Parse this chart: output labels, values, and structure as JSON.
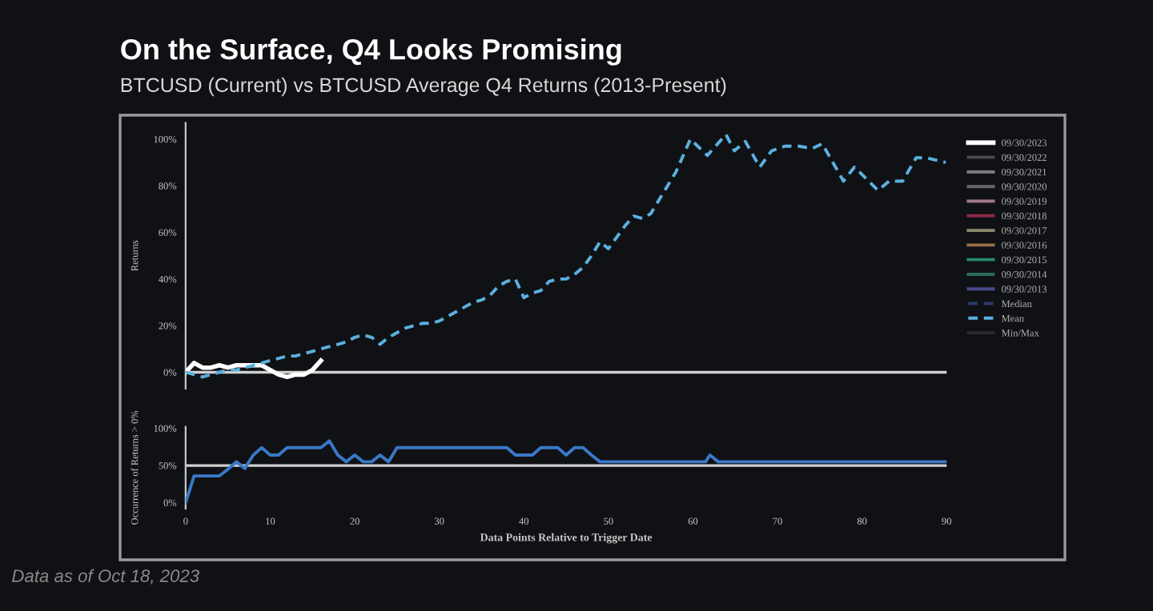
{
  "chart_data": [
    {
      "type": "line",
      "title": "On the Surface, Q4 Looks Promising",
      "subtitle": "BTCUSD (Current) vs BTCUSD Average Q4 Returns (2013-Present)",
      "ylabel": "Returns",
      "annotations": [
        "Data as of Oct 18, 2023"
      ],
      "xlim": [
        0,
        90
      ],
      "ylim": [
        -7,
        107
      ],
      "yticks": [
        {
          "value": 0,
          "label": "0%"
        },
        {
          "value": 20,
          "label": "20%"
        },
        {
          "value": 40,
          "label": "40%"
        },
        {
          "value": 60,
          "label": "60%"
        },
        {
          "value": 80,
          "label": "80%"
        },
        {
          "value": 100,
          "label": "100%"
        }
      ],
      "tick_labels": "y",
      "grid": false,
      "legend": "right",
      "ref_lines": [
        {
          "axis": "y",
          "value": 0,
          "color": "#d0d0d0"
        }
      ],
      "series": [
        {
          "name": "09/30/2023",
          "color": "#ffffff",
          "line_style": "solid",
          "x": [
            0,
            1,
            2,
            3,
            4,
            5,
            6,
            7,
            8,
            9,
            10,
            11,
            12,
            13,
            14,
            15,
            16
          ],
          "values": [
            0,
            4,
            2,
            2,
            3,
            2,
            3,
            3,
            3,
            3,
            1,
            -1,
            -2,
            -1,
            -1,
            1,
            5
          ]
        },
        {
          "name": "09/30/2022",
          "color": "#4a4a4a"
        },
        {
          "name": "09/30/2021",
          "color": "#7a7a7a"
        },
        {
          "name": "09/30/2020",
          "color": "#666666"
        },
        {
          "name": "09/30/2019",
          "color": "#a07888"
        },
        {
          "name": "09/30/2018",
          "color": "#8a2a44"
        },
        {
          "name": "09/30/2017",
          "color": "#8a8a70"
        },
        {
          "name": "09/30/2016",
          "color": "#9a7048"
        },
        {
          "name": "09/30/2015",
          "color": "#2a8a6a"
        },
        {
          "name": "09/30/2014",
          "color": "#2a6a58"
        },
        {
          "name": "09/30/2013",
          "color": "#4a4a8a"
        },
        {
          "name": "Median",
          "color": "#2a3a6a",
          "line_style": "dashed"
        },
        {
          "name": "Mean",
          "color": "#5ab0e0",
          "line_style": "dashed",
          "x": [
            0,
            1,
            2,
            3,
            4,
            5,
            6,
            7,
            8,
            9,
            10,
            11,
            12,
            13,
            14,
            15,
            16,
            17,
            18,
            19,
            20,
            21,
            22,
            23,
            24,
            25,
            26,
            27,
            28,
            29,
            30,
            31,
            32,
            33,
            34,
            35,
            36,
            37,
            38,
            39,
            40,
            41,
            42,
            43,
            44,
            45,
            46,
            47,
            48,
            49,
            50,
            51,
            52,
            53,
            54,
            55,
            56,
            57,
            58,
            59.7,
            61.7,
            63.9,
            64.9,
            66.2,
            67.9,
            69.3,
            70.9,
            72.5,
            74.1,
            75.3,
            77.8,
            79.1,
            81.9,
            83.2,
            84.8,
            86.4,
            87.6,
            89.9
          ],
          "values": [
            0,
            -1,
            -2,
            -1,
            0,
            1,
            1,
            2,
            3,
            4,
            5,
            6,
            7,
            7,
            8,
            9,
            10,
            11,
            12,
            13,
            15,
            16,
            15,
            12,
            15,
            17,
            19,
            20,
            21,
            21,
            22,
            24,
            26,
            28,
            30,
            31,
            33,
            37,
            39,
            40,
            32,
            34,
            35,
            39,
            40,
            40,
            42,
            45,
            50,
            56,
            53,
            58,
            63,
            67,
            66,
            68,
            74,
            80,
            86,
            100,
            93,
            102,
            95,
            99,
            88,
            95,
            97,
            97,
            96,
            98,
            82,
            88,
            78,
            82,
            82,
            92,
            92,
            90
          ]
        },
        {
          "name": "Min/Max",
          "color": "#2a2a30"
        }
      ]
    },
    {
      "type": "line",
      "xlabel": "Data Points Relative to Trigger Date",
      "ylabel": "Occurrence of Returns > 0%",
      "xlim": [
        0,
        90
      ],
      "ylim": [
        -8,
        102
      ],
      "xticks": [
        0,
        10,
        20,
        30,
        40,
        50,
        60,
        70,
        80,
        90
      ],
      "yticks": [
        {
          "value": 0,
          "label": "0%"
        },
        {
          "value": 50,
          "label": "50%"
        },
        {
          "value": 100,
          "label": "100%"
        }
      ],
      "grid": false,
      "legend": false,
      "ref_lines": [
        {
          "axis": "y",
          "value": 50,
          "color": "#d0d0d0"
        }
      ],
      "series": [
        {
          "color": "#3a78c8",
          "line_style": "solid",
          "x": [
            0,
            1,
            4,
            5,
            6,
            7,
            8,
            9,
            10,
            11,
            12,
            16,
            17,
            18,
            19,
            20,
            21,
            22,
            23,
            24,
            25,
            38,
            39,
            41,
            42,
            44,
            45,
            46,
            47,
            48,
            49,
            61.5,
            62,
            63,
            90
          ],
          "values": [
            0,
            36,
            36,
            45,
            55,
            46,
            64,
            74,
            64,
            64,
            74,
            74,
            83,
            64,
            55,
            64,
            55,
            55,
            64,
            55,
            74,
            74,
            64,
            64,
            74,
            74,
            64,
            74,
            74,
            64,
            55,
            55,
            64,
            55,
            55
          ]
        }
      ]
    }
  ]
}
